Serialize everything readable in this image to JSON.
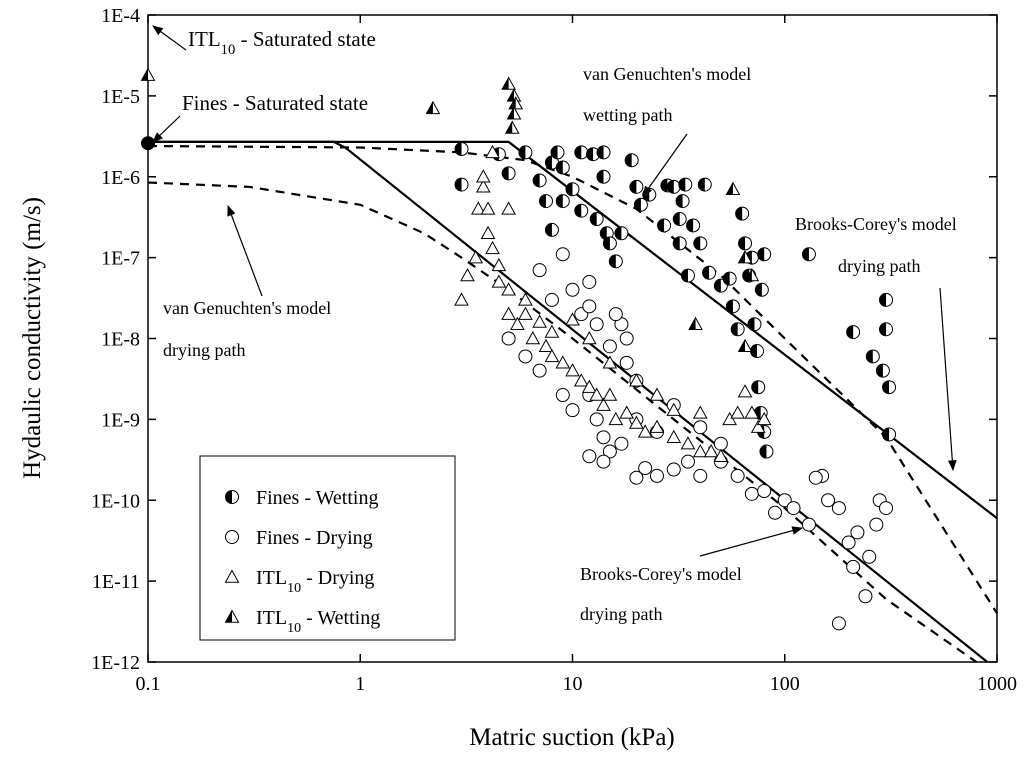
{
  "chart_data": {
    "type": "scatter",
    "log_x": true,
    "log_y": true,
    "x_label": "Matric suction (kPa)",
    "y_label": "Hydaulic conductivity (m/s)",
    "xlim": [
      0.1,
      1000
    ],
    "xticks": [
      0.1,
      1,
      10,
      100,
      1000
    ],
    "ylim": [
      1e-12,
      0.0001
    ],
    "yticks": [
      {
        "value": 1e-12,
        "label": "1E-12"
      },
      {
        "value": 1e-11,
        "label": "1E-11"
      },
      {
        "value": 1e-10,
        "label": "1E-10"
      },
      {
        "value": 1e-09,
        "label": "1E-9"
      },
      {
        "value": 1e-08,
        "label": "1E-8"
      },
      {
        "value": 1e-07,
        "label": "1E-7"
      },
      {
        "value": 1e-06,
        "label": "1E-6"
      },
      {
        "value": 1e-05,
        "label": "1E-5"
      },
      {
        "value": 0.0001,
        "label": "1E-4"
      }
    ],
    "color": "#000000",
    "series": [
      {
        "name": [
          "Fines - Wetting"
        ],
        "marker": "half-circle",
        "x": [
          3,
          3,
          4.5,
          5,
          6,
          7,
          7.5,
          8,
          8,
          8.5,
          9,
          9,
          10,
          11,
          11,
          12.5,
          13,
          14,
          14,
          14.5,
          15,
          16,
          17,
          19,
          20,
          21,
          23,
          27,
          28,
          30,
          32,
          32,
          33,
          34,
          35,
          37,
          40,
          42,
          44,
          50,
          55,
          57,
          60,
          63,
          65,
          68,
          70,
          72,
          74,
          75,
          77,
          80,
          82,
          78,
          80,
          130,
          210,
          260,
          290,
          300,
          300,
          310,
          310
        ],
        "y": [
          2.2e-06,
          8e-07,
          1.9e-06,
          1.1e-06,
          2e-06,
          9e-07,
          5e-07,
          2.2e-07,
          1.5e-06,
          2e-06,
          1.3e-06,
          5e-07,
          7e-07,
          2e-06,
          3.8e-07,
          1.9e-06,
          3e-07,
          2e-06,
          1e-06,
          2e-07,
          1.5e-07,
          9e-08,
          2e-07,
          1.6e-06,
          7.5e-07,
          4.5e-07,
          6e-07,
          2.5e-07,
          7.8e-07,
          7.5e-07,
          1.5e-07,
          3e-07,
          5e-07,
          8e-07,
          6e-08,
          2.5e-07,
          1.5e-07,
          8e-07,
          6.5e-08,
          4.5e-08,
          5.5e-08,
          2.5e-08,
          1.3e-08,
          3.5e-07,
          1.5e-07,
          6e-08,
          1e-07,
          1.5e-08,
          7e-09,
          2.5e-09,
          1.2e-09,
          7e-10,
          4e-10,
          4e-08,
          1.1e-07,
          1.1e-07,
          1.2e-08,
          6e-09,
          4e-09,
          3e-08,
          1.3e-08,
          2.5e-09,
          6.5e-10
        ]
      },
      {
        "name": [
          "Fines - Drying"
        ],
        "marker": "open-circle",
        "x": [
          5,
          7,
          8,
          9,
          10,
          11,
          12,
          13,
          15,
          17,
          18,
          20,
          9,
          10,
          12,
          13,
          14,
          15,
          12,
          14,
          17,
          20,
          22,
          25,
          30,
          35,
          40,
          50,
          60,
          70,
          80,
          100,
          90,
          110,
          130,
          150,
          160,
          180,
          200,
          210,
          220,
          240,
          250,
          270,
          280,
          300,
          180,
          140,
          6,
          7,
          20,
          25,
          30,
          40,
          50,
          16,
          18,
          12
        ],
        "y": [
          1e-08,
          7e-08,
          3e-08,
          1.1e-07,
          4e-08,
          2e-08,
          2.5e-08,
          1.5e-08,
          8e-09,
          1.5e-08,
          5e-09,
          3e-09,
          2e-09,
          1.3e-09,
          2e-09,
          1e-09,
          6e-10,
          4e-10,
          3.5e-10,
          3e-10,
          5e-10,
          1.9e-10,
          2.5e-10,
          2e-10,
          2.4e-10,
          3e-10,
          2e-10,
          3e-10,
          2e-10,
          1.2e-10,
          1.3e-10,
          1e-10,
          7e-11,
          8e-11,
          5e-11,
          2e-10,
          1e-10,
          8e-11,
          3e-11,
          1.5e-11,
          4e-11,
          6.5e-12,
          2e-11,
          5e-11,
          1e-10,
          8e-11,
          3e-12,
          1.9e-10,
          6e-09,
          4e-09,
          1e-09,
          7e-10,
          1.5e-09,
          8e-10,
          5e-10,
          2e-08,
          1e-08,
          5e-08
        ]
      },
      {
        "name": [
          "ITL",
          "10",
          " - Drying"
        ],
        "marker": "open-triangle",
        "x": [
          3,
          3.2,
          3.5,
          3.6,
          3.8,
          4,
          4,
          4.2,
          4.5,
          4.5,
          5,
          5,
          5,
          5.5,
          6,
          6.5,
          7,
          7.5,
          8,
          8,
          9,
          10,
          11,
          12,
          13,
          14,
          15,
          16,
          18,
          20,
          22,
          25,
          30,
          35,
          40,
          45,
          50,
          55,
          60,
          65,
          70,
          75,
          80,
          40,
          30,
          25,
          20,
          15,
          12,
          10,
          4.2,
          3.8,
          6
        ],
        "y": [
          3e-08,
          6e-08,
          1e-07,
          4e-07,
          7.5e-07,
          4e-07,
          2e-07,
          1.3e-07,
          8e-08,
          5e-08,
          4e-08,
          4e-07,
          2e-08,
          1.5e-08,
          2e-08,
          1e-08,
          1.6e-08,
          8e-09,
          1.2e-08,
          6e-09,
          5e-09,
          4e-09,
          3e-09,
          2.5e-09,
          2e-09,
          1.5e-09,
          2e-09,
          1e-09,
          1.2e-09,
          9e-10,
          7e-10,
          8e-10,
          6e-10,
          5e-10,
          4e-10,
          4e-10,
          3.5e-10,
          1e-09,
          1.2e-09,
          2.2e-09,
          1.2e-09,
          8e-10,
          1e-09,
          1.2e-09,
          1.3e-09,
          2e-09,
          3e-09,
          5e-09,
          1e-08,
          1.7e-08,
          2e-06,
          1e-06,
          3e-08
        ]
      },
      {
        "name": [
          "ITL",
          "10",
          " - Wetting"
        ],
        "marker": "half-triangle",
        "x": [
          2.2,
          5,
          5.3,
          5.4,
          5.3,
          5.2,
          38,
          57,
          65,
          70,
          65
        ],
        "y": [
          7e-06,
          1.4e-05,
          1e-05,
          8e-06,
          6e-06,
          4e-06,
          1.5e-08,
          7e-07,
          1e-07,
          6e-08,
          8e-09
        ]
      },
      {
        "marker": "filled-circle",
        "x": [
          0.1
        ],
        "y": [
          2.6e-06
        ]
      },
      {
        "marker": "half-triangle",
        "x": [
          0.1
        ],
        "y": [
          1.8e-05
        ]
      }
    ],
    "lines": [
      {
        "style": "solid",
        "x": [
          0.1,
          5,
          1000
        ],
        "y": [
          2.7e-06,
          2.7e-06,
          6e-11
        ]
      },
      {
        "style": "solid",
        "x": [
          0.1,
          0.75,
          0.85,
          900
        ],
        "y": [
          2.7e-06,
          2.7e-06,
          2.3e-06,
          1e-12
        ]
      },
      {
        "style": "dashed",
        "x": [
          0.1,
          1,
          3,
          6,
          10,
          20,
          50,
          100,
          300,
          1000
        ],
        "y": [
          2.4e-06,
          2.3e-06,
          2e-06,
          1.6e-06,
          1e-06,
          4e-07,
          6e-08,
          1e-08,
          6e-10,
          4e-12
        ]
      },
      {
        "style": "dashed",
        "x": [
          0.1,
          0.3,
          1,
          2,
          3,
          5,
          10,
          30,
          100,
          300,
          800
        ],
        "y": [
          8.5e-07,
          7.5e-07,
          4.5e-07,
          2e-07,
          1e-07,
          4e-08,
          1e-08,
          1e-09,
          8e-11,
          6e-12,
          1e-12
        ]
      }
    ],
    "annotations": [
      {
        "lines": [
          [
            "ITL",
            "10",
            " - Saturated state"
          ]
        ]
      },
      {
        "lines": [
          [
            "Fines - Saturated state"
          ]
        ]
      },
      {
        "lines": [
          [
            "van Genuchten's model"
          ],
          [
            "wetting path"
          ]
        ]
      },
      {
        "lines": [
          [
            "Brooks-Corey's model"
          ],
          [
            "drying path"
          ]
        ]
      },
      {
        "lines": [
          [
            "van Genuchten's model"
          ],
          [
            "drying path"
          ]
        ]
      },
      {
        "lines": [
          [
            "Brooks-Corey's model"
          ],
          [
            "drying path"
          ]
        ]
      }
    ]
  }
}
